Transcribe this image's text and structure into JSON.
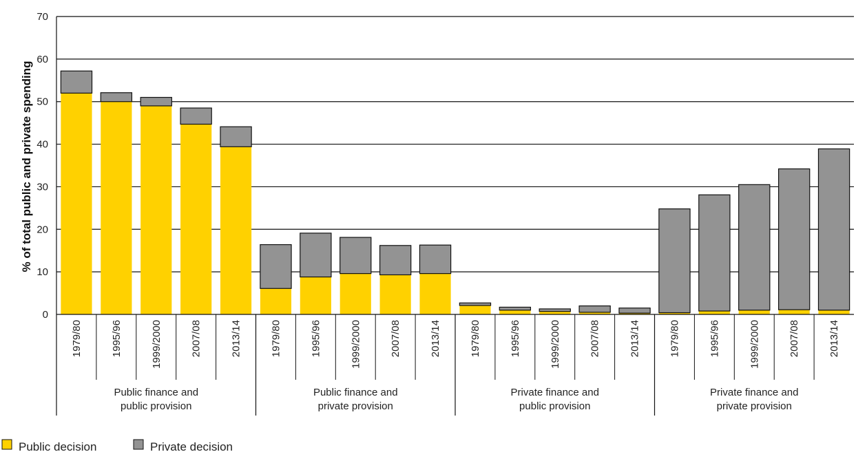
{
  "chart_data": {
    "type": "bar",
    "stacked": true,
    "ylabel": "% of total public and private spending",
    "xlabel": "",
    "ylim": [
      0,
      70
    ],
    "yticks": [
      0,
      10,
      20,
      30,
      40,
      50,
      60,
      70
    ],
    "grid": "horizontal",
    "legend_position": "bottom-left",
    "colors": {
      "public": "#FFD100",
      "private": "#939393",
      "outline": "#111111"
    },
    "groups": [
      {
        "label": [
          "Public finance and",
          "public provision"
        ],
        "categories": [
          "1979/80",
          "1995/96",
          "1999/2000",
          "2007/08",
          "2013/14"
        ],
        "public_decision": [
          52,
          50,
          49,
          44.7,
          39.4
        ],
        "private_decision": [
          5.2,
          2.1,
          2,
          3.8,
          4.7
        ]
      },
      {
        "label": [
          "Public finance and",
          "private provision"
        ],
        "categories": [
          "1979/80",
          "1995/96",
          "1999/2000",
          "2007/08",
          "2013/14"
        ],
        "public_decision": [
          6.1,
          8.8,
          9.6,
          9.3,
          9.6
        ],
        "private_decision": [
          10.3,
          10.3,
          8.5,
          6.9,
          6.7
        ]
      },
      {
        "label": [
          "Private finance and",
          "public provision"
        ],
        "categories": [
          "1979/80",
          "1995/96",
          "1999/2000",
          "2007/08",
          "2013/14"
        ],
        "public_decision": [
          2.1,
          1,
          0.7,
          0.5,
          0.3
        ],
        "private_decision": [
          0.6,
          0.7,
          0.6,
          1.5,
          1.2
        ]
      },
      {
        "label": [
          "Private finance and",
          "private provision"
        ],
        "categories": [
          "1979/80",
          "1995/96",
          "1999/2000",
          "2007/08",
          "2013/14"
        ],
        "public_decision": [
          0.4,
          0.8,
          1,
          1.1,
          1
        ],
        "private_decision": [
          24.4,
          27.3,
          29.5,
          33.1,
          37.9
        ]
      }
    ],
    "series": [
      {
        "name": "Public decision",
        "key": "public_decision"
      },
      {
        "name": "Private decision",
        "key": "private_decision"
      }
    ]
  }
}
